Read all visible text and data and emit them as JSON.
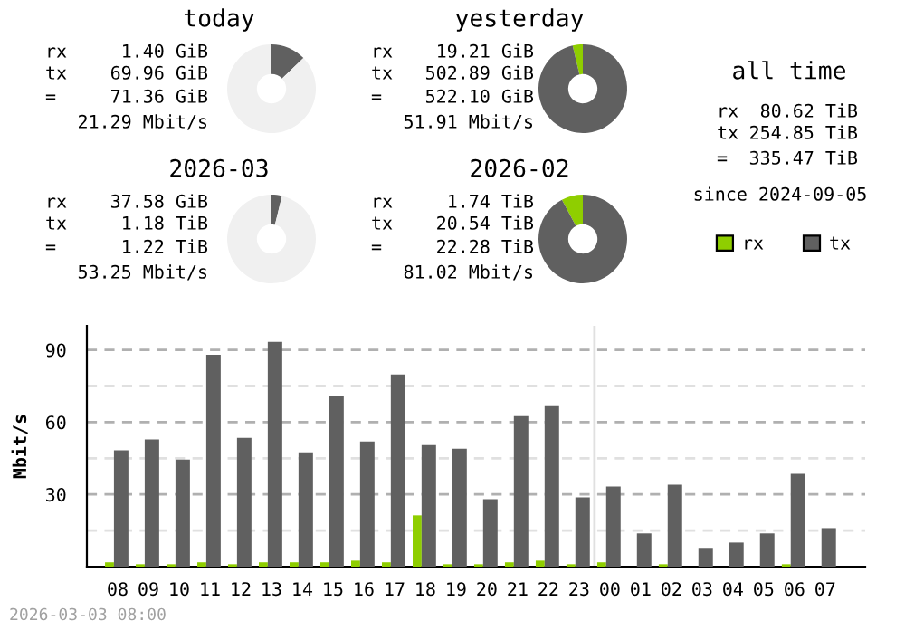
{
  "chart_data": [
    {
      "type": "donut",
      "title": "today",
      "categories": [
        null,
        null,
        null
      ],
      "values": [
        0.3,
        12.8,
        86.9
      ],
      "colors": [
        "#8fce00",
        "#606060",
        "#f0f0f0"
      ],
      "annotations": [
        "rx 1.40 GiB",
        "tx 69.96 GiB",
        "= 71.36 GiB",
        "21.29 Mbit/s"
      ]
    },
    {
      "type": "donut",
      "title": "yesterday",
      "categories": [
        null,
        null,
        null
      ],
      "values": [
        3.7,
        96.3,
        0
      ],
      "colors": [
        "#8fce00",
        "#606060",
        "#f0f0f0"
      ],
      "annotations": [
        "rx 19.21 GiB",
        "tx 502.89 GiB",
        "= 522.10 GiB",
        "51.91 Mbit/s"
      ]
    },
    {
      "type": "donut",
      "title": "2026-03",
      "categories": [
        null,
        null,
        null
      ],
      "values": [
        null,
        3.8,
        96.1
      ],
      "colors": [
        "#8fce00",
        "#606060",
        "#f0f0f0"
      ],
      "annotations": [
        "rx 37.58 GiB",
        "tx 1.18 TiB",
        "= 1.22 TiB",
        "53.25 Mbit/s"
      ]
    },
    {
      "type": "donut",
      "title": "2026-02",
      "categories": [
        null,
        null,
        null
      ],
      "values": [
        7.8,
        92.2,
        0
      ],
      "colors": [
        "#8fce00",
        "#606060",
        "#f0f0f0"
      ],
      "annotations": [
        "rx 1.74 TiB",
        "tx 20.54 TiB",
        "= 22.28 TiB",
        "81.02 Mbit/s"
      ]
    },
    {
      "type": "other",
      "title": "all time",
      "annotations": [
        "rx 80.62 TiB",
        "tx 254.85 TiB",
        "= 335.47 TiB",
        "since 2024-09-05"
      ]
    },
    {
      "type": "bar",
      "ylabel": "Mbit/s",
      "categories": [
        "08",
        "09",
        "10",
        "11",
        "12",
        "13",
        "14",
        "15",
        "16",
        "17",
        "18",
        "19",
        "20",
        "21",
        "22",
        "23",
        "00",
        "01",
        "02",
        "03",
        "04",
        "05",
        "06",
        "07"
      ],
      "series": [
        {
          "name": "rx",
          "color": "#8fce00",
          "values": [
            1.8,
            1,
            1,
            1.8,
            1,
            1.8,
            1.8,
            1.8,
            2.5,
            1.8,
            21.3,
            1,
            1,
            1.8,
            2.5,
            1,
            1.8,
            0,
            1,
            0,
            0,
            0,
            1,
            0
          ]
        },
        {
          "name": "tx",
          "color": "#606060",
          "values": [
            48.3,
            52.8,
            44.5,
            88,
            53.5,
            93.3,
            47.5,
            70.8,
            52,
            79.8,
            50.5,
            49,
            28,
            62.5,
            67,
            28.8,
            33.3,
            13.8,
            34,
            7.8,
            10,
            13.8,
            38.5,
            16
          ]
        }
      ],
      "ylim": [
        0,
        100
      ],
      "yticks": [
        {
          "value": 15,
          "label": null
        },
        30,
        {
          "value": 45,
          "label": null
        },
        60,
        {
          "value": 75,
          "label": null
        },
        90
      ],
      "grid": "y",
      "legend": "top right",
      "ref_lines": [
        {
          "axis": "x",
          "value": "00",
          "color": "#e0e0e0"
        }
      ],
      "annotations": [
        "2026-03-03 08:00"
      ]
    }
  ]
}
